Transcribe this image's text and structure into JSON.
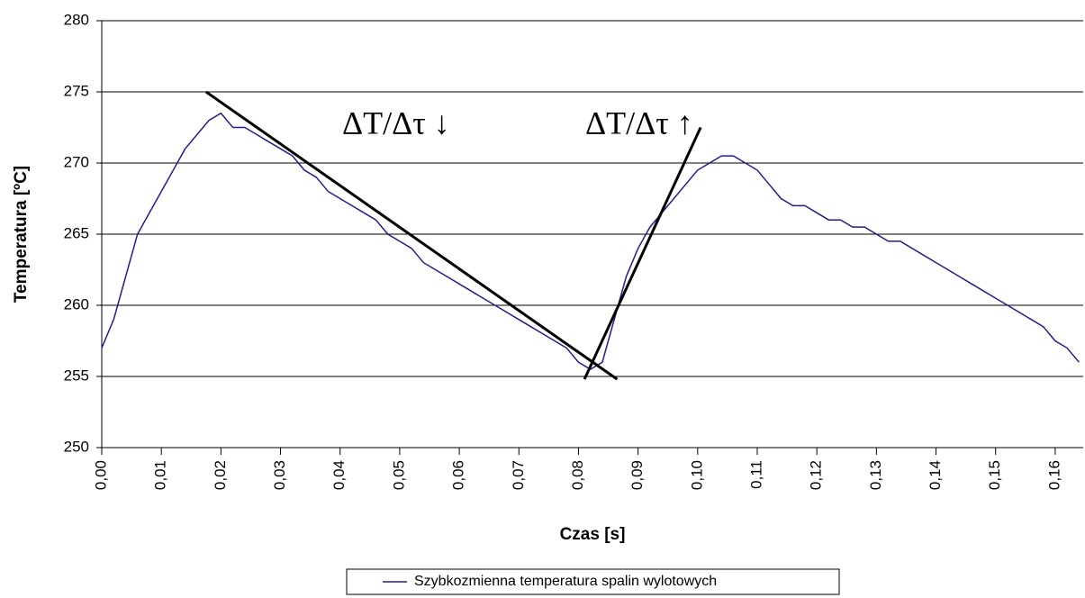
{
  "chart_data": {
    "type": "line",
    "x_label": "Czas [s]",
    "y_label": "Temperatura [ºC]",
    "x": [
      0,
      0.002,
      0.004,
      0.006,
      0.008,
      0.01,
      0.012,
      0.014,
      0.016,
      0.018,
      0.02,
      0.022,
      0.024,
      0.026,
      0.028,
      0.03,
      0.032,
      0.034,
      0.036,
      0.038,
      0.04,
      0.042,
      0.044,
      0.046,
      0.048,
      0.05,
      0.052,
      0.054,
      0.056,
      0.058,
      0.06,
      0.062,
      0.064,
      0.066,
      0.068,
      0.07,
      0.072,
      0.074,
      0.076,
      0.078,
      0.08,
      0.082,
      0.084,
      0.086,
      0.088,
      0.09,
      0.092,
      0.094,
      0.096,
      0.098,
      0.1,
      0.102,
      0.104,
      0.106,
      0.108,
      0.11,
      0.112,
      0.114,
      0.116,
      0.118,
      0.12,
      0.122,
      0.124,
      0.126,
      0.128,
      0.13,
      0.132,
      0.134,
      0.136,
      0.138,
      0.14,
      0.142,
      0.144,
      0.146,
      0.148,
      0.15,
      0.152,
      0.154,
      0.156,
      0.158,
      0.16,
      0.162,
      0.164
    ],
    "series": [
      {
        "name": "Szybkozmienna temperatura spalin wylotowych",
        "color": "#1f1f8f",
        "values": [
          257,
          259,
          262,
          265,
          266.5,
          268,
          269.5,
          271,
          272,
          273,
          273.5,
          272.5,
          272.5,
          272,
          271.5,
          271,
          270.5,
          269.5,
          269,
          268,
          267.5,
          267,
          266.5,
          266,
          265,
          264.5,
          264,
          263,
          262.5,
          262,
          261.5,
          261,
          260.5,
          260,
          259.5,
          259,
          258.5,
          258,
          257.5,
          257,
          256,
          255.5,
          256,
          259,
          262,
          264,
          265.5,
          266.5,
          267.5,
          268.5,
          269.5,
          270,
          270.5,
          270.5,
          270,
          269.5,
          268.5,
          267.5,
          267,
          267,
          266.5,
          266,
          266,
          265.5,
          265.5,
          265,
          264.5,
          264.5,
          264,
          263.5,
          263,
          262.5,
          262,
          261.5,
          261,
          260.5,
          260,
          259.5,
          259,
          258.5,
          257.5,
          257,
          256
        ]
      }
    ],
    "trend_lines": [
      {
        "color": "#000000",
        "x": [
          0.0175,
          0.0865
        ],
        "values": [
          275,
          254.8
        ]
      },
      {
        "color": "#000000",
        "x": [
          0.081,
          0.1005
        ],
        "values": [
          254.8,
          272.5
        ]
      }
    ],
    "annotations": [
      "ΔT/Δτ ↓",
      "ΔT/Δτ ↑"
    ],
    "xlim": [
      0,
      0.1647
    ],
    "ylim": [
      250,
      280
    ],
    "xticks": [
      {
        "value": 0,
        "label": "0,00"
      },
      {
        "value": 0.01,
        "label": "0,01"
      },
      {
        "value": 0.02,
        "label": "0,02"
      },
      {
        "value": 0.03,
        "label": "0,03"
      },
      {
        "value": 0.04,
        "label": "0,04"
      },
      {
        "value": 0.05,
        "label": "0,05"
      },
      {
        "value": 0.06,
        "label": "0,06"
      },
      {
        "value": 0.07,
        "label": "0,07"
      },
      {
        "value": 0.08,
        "label": "0,08"
      },
      {
        "value": 0.09,
        "label": "0,09"
      },
      {
        "value": 0.1,
        "label": "0,10"
      },
      {
        "value": 0.11,
        "label": "0,11"
      },
      {
        "value": 0.12,
        "label": "0,12"
      },
      {
        "value": 0.13,
        "label": "0,13"
      },
      {
        "value": 0.14,
        "label": "0,14"
      },
      {
        "value": 0.15,
        "label": "0,15"
      },
      {
        "value": 0.16,
        "label": "0,16"
      }
    ],
    "yticks": [
      250,
      255,
      260,
      265,
      270,
      275,
      280
    ],
    "grid": true
  }
}
